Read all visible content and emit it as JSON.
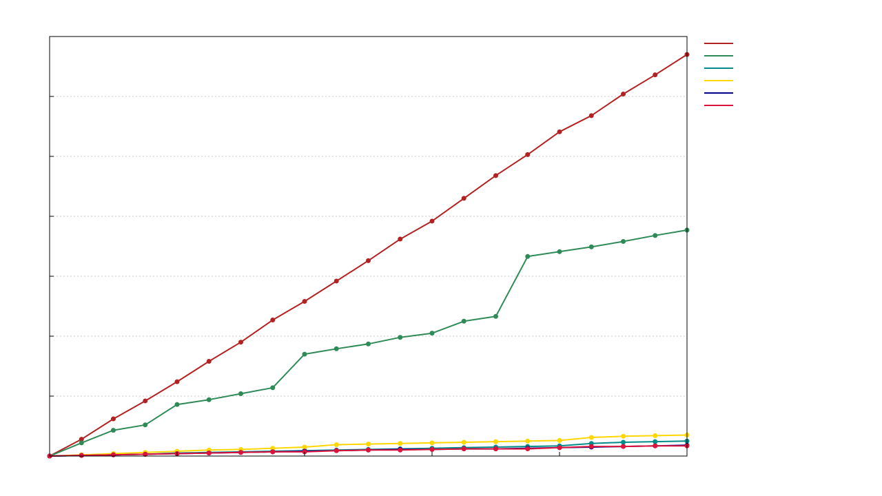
{
  "chart_data": {
    "type": "line",
    "title": "",
    "xlabel": "",
    "ylabel": "",
    "x": [
      0,
      1,
      2,
      3,
      4,
      5,
      6,
      7,
      8,
      9,
      10,
      11,
      12,
      13,
      14,
      15,
      16,
      17,
      18,
      19,
      20
    ],
    "xlim": [
      0,
      20
    ],
    "ylim": [
      0,
      7
    ],
    "grid": "horizontal-dotted",
    "legend": "top-right-outside",
    "series": [
      {
        "color": "#b22222",
        "values": [
          0,
          0.28,
          0.62,
          0.92,
          1.24,
          1.58,
          1.9,
          2.27,
          2.58,
          2.92,
          3.26,
          3.62,
          3.92,
          4.3,
          4.68,
          5.03,
          5.41,
          5.68,
          6.04,
          6.36,
          6.7
        ]
      },
      {
        "color": "#2e8b57",
        "values": [
          0,
          0.22,
          0.43,
          0.52,
          0.86,
          0.94,
          1.04,
          1.14,
          1.7,
          1.79,
          1.87,
          1.98,
          2.05,
          2.25,
          2.33,
          3.33,
          3.41,
          3.49,
          3.58,
          3.68,
          3.77
        ]
      },
      {
        "color": "#008b8b",
        "values": [
          0,
          0.01,
          0.02,
          0.03,
          0.05,
          0.06,
          0.07,
          0.08,
          0.09,
          0.1,
          0.11,
          0.12,
          0.13,
          0.14,
          0.15,
          0.16,
          0.17,
          0.21,
          0.23,
          0.24,
          0.25
        ]
      },
      {
        "color": "#ffd700",
        "values": [
          0,
          0.02,
          0.04,
          0.06,
          0.08,
          0.1,
          0.11,
          0.13,
          0.15,
          0.19,
          0.2,
          0.21,
          0.22,
          0.23,
          0.24,
          0.25,
          0.26,
          0.31,
          0.33,
          0.34,
          0.35
        ]
      },
      {
        "color": "#00008b",
        "values": [
          0,
          0.01,
          0.02,
          0.03,
          0.04,
          0.05,
          0.06,
          0.07,
          0.08,
          0.09,
          0.1,
          0.11,
          0.11,
          0.12,
          0.12,
          0.13,
          0.14,
          0.15,
          0.16,
          0.17,
          0.18
        ]
      },
      {
        "color": "#dc143c",
        "values": [
          0,
          0.01,
          0.02,
          0.03,
          0.04,
          0.05,
          0.06,
          0.07,
          0.07,
          0.09,
          0.1,
          0.1,
          0.11,
          0.12,
          0.12,
          0.12,
          0.14,
          0.16,
          0.16,
          0.17,
          0.17
        ]
      }
    ]
  }
}
